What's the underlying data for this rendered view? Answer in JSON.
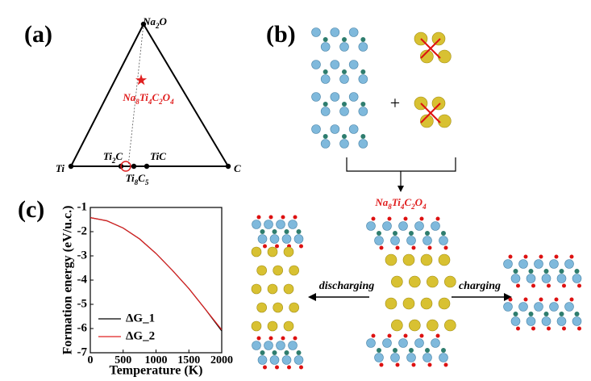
{
  "panel_a": {
    "label": "(a)",
    "na2o": [
      "Na",
      "2",
      "O"
    ],
    "ti": "Ti",
    "c": "C",
    "ti2c": [
      "Ti",
      "2",
      "C"
    ],
    "ti8c5": [
      "Ti",
      "8",
      "C",
      "5"
    ],
    "tic": "TiC",
    "compound": [
      "Na",
      "8",
      "Ti",
      "4",
      "C",
      "2",
      "O",
      "4"
    ]
  },
  "panel_b": {
    "label": "(b)",
    "plus": "+",
    "compound": [
      "Na",
      "8",
      "Ti",
      "4",
      "C",
      "2",
      "O",
      "4"
    ],
    "discharging": "discharging",
    "charging": "charging"
  },
  "chart_data": {
    "type": "line",
    "panel_label": "(c)",
    "x_label": "Temperature (K)",
    "y_label": "Formation energy  (eV/u.c.)",
    "x": [
      0,
      250,
      500,
      750,
      1000,
      1250,
      1500,
      1750,
      2000
    ],
    "series": [
      {
        "name": "ΔG_1",
        "color": "#000000",
        "values": [
          -1.42,
          -1.55,
          -1.85,
          -2.3,
          -2.9,
          -3.6,
          -4.35,
          -5.2,
          -6.1
        ]
      },
      {
        "name": "ΔG_2",
        "color": "#e02020",
        "values": [
          -1.42,
          -1.55,
          -1.85,
          -2.3,
          -2.9,
          -3.6,
          -4.35,
          -5.2,
          -6.05
        ]
      }
    ],
    "xlim": [
      0,
      2000
    ],
    "ylim": [
      -7,
      -1
    ],
    "xticks": [
      0,
      500,
      1000,
      1500,
      2000
    ],
    "yticks": [
      -7,
      -6,
      -5,
      -4,
      -3,
      -2,
      -1
    ],
    "legend": "lower left"
  }
}
